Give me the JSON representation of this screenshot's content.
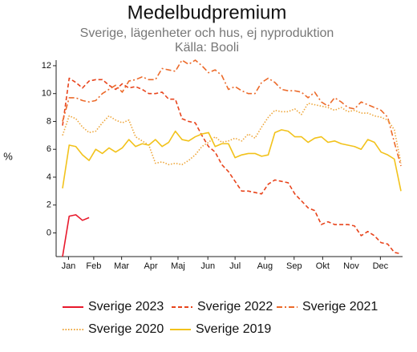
{
  "chart_data": {
    "type": "line",
    "title": "Medelbudpremium",
    "subtitle": "Sverige, lägenheter och hus, ej nyproduktion",
    "source": "Källa: Booli",
    "ylabel": "%",
    "x": [
      1,
      2,
      3,
      4,
      5,
      6,
      7,
      8,
      9,
      10,
      11,
      12,
      13,
      14,
      15,
      16,
      17,
      18,
      19,
      20,
      21,
      22,
      23,
      24,
      25,
      26,
      27,
      28,
      29,
      30,
      31,
      32,
      33,
      34,
      35,
      36,
      37,
      38,
      39,
      40,
      41,
      42,
      43,
      44,
      45,
      46,
      47,
      48,
      49,
      50,
      51,
      52
    ],
    "xlim": [
      1,
      52
    ],
    "xticks": [
      {
        "value": 1.9,
        "label": "Jan"
      },
      {
        "value": 5.7,
        "label": "Feb"
      },
      {
        "value": 9.9,
        "label": "Mar"
      },
      {
        "value": 14.3,
        "label": "Apr"
      },
      {
        "value": 18.4,
        "label": "Maj"
      },
      {
        "value": 22.9,
        "label": "Jun"
      },
      {
        "value": 27,
        "label": "Jul"
      },
      {
        "value": 31.5,
        "label": "Aug"
      },
      {
        "value": 35.9,
        "label": "Sep"
      },
      {
        "value": 40.2,
        "label": "Okt"
      },
      {
        "value": 44.5,
        "label": "Nov"
      },
      {
        "value": 48.9,
        "label": "Dec"
      }
    ],
    "ylim": [
      -1.7,
      12.4
    ],
    "yticks": [
      0,
      2,
      4,
      6,
      8,
      10,
      12
    ],
    "grid": false,
    "legend": "bottom",
    "series": [
      {
        "name": "Sverige 2023",
        "color": "#e8192c",
        "style": "solid",
        "values": [
          -1.7,
          1.2,
          1.3,
          0.9,
          1.1,
          null,
          null,
          null,
          null,
          null,
          null,
          null,
          null,
          null,
          null,
          null,
          null,
          null,
          null,
          null,
          null,
          null,
          null,
          null,
          null,
          null,
          null,
          null,
          null,
          null,
          null,
          null,
          null,
          null,
          null,
          null,
          null,
          null,
          null,
          null,
          null,
          null,
          null,
          null,
          null,
          null,
          null,
          null,
          null,
          null,
          null,
          null
        ]
      },
      {
        "name": "Sverige 2022",
        "color": "#e8441c",
        "style": "dashed",
        "values": [
          7.7,
          11.1,
          10.8,
          10.4,
          10.9,
          11.0,
          11.0,
          10.6,
          10.3,
          10.7,
          10.4,
          10.5,
          10.3,
          10.0,
          10.0,
          10.1,
          9.6,
          9.6,
          8.2,
          8.0,
          7.9,
          7.0,
          6.2,
          5.8,
          4.9,
          4.4,
          3.7,
          3.0,
          3.0,
          2.9,
          2.8,
          3.5,
          3.8,
          3.7,
          3.6,
          2.8,
          2.3,
          1.8,
          1.6,
          0.6,
          0.8,
          0.6,
          0.6,
          0.6,
          0.5,
          -0.2,
          0.1,
          -0.2,
          -0.7,
          -0.8,
          -1.4,
          -1.5
        ]
      },
      {
        "name": "Sverige 2021",
        "color": "#ec6a2a",
        "style": "dashdot",
        "values": [
          8.0,
          9.7,
          9.7,
          9.5,
          9.4,
          9.5,
          10.0,
          10.3,
          10.6,
          10.1,
          10.9,
          11.0,
          11.2,
          11.0,
          11.0,
          11.8,
          11.7,
          11.6,
          12.4,
          12.1,
          12.4,
          12.0,
          11.5,
          11.7,
          11.3,
          10.3,
          10.5,
          10.2,
          10.0,
          10.0,
          10.8,
          11.1,
          10.8,
          10.3,
          10.2,
          10.2,
          10.1,
          9.7,
          10.1,
          9.4,
          9.1,
          9.7,
          9.4,
          9.0,
          8.9,
          9.4,
          9.2,
          9.0,
          8.8,
          8.3,
          6.5,
          4.8
        ]
      },
      {
        "name": "Sverige 2020",
        "color": "#eea63a",
        "style": "dotted",
        "values": [
          7.0,
          8.4,
          8.2,
          7.6,
          7.2,
          7.3,
          7.9,
          8.4,
          8.1,
          7.9,
          8.1,
          6.9,
          6.6,
          6.3,
          5.0,
          5.1,
          4.9,
          5.0,
          4.9,
          5.2,
          5.6,
          6.2,
          6.5,
          6.9,
          6.5,
          6.6,
          6.8,
          6.6,
          7.1,
          6.8,
          7.6,
          8.3,
          8.8,
          8.7,
          8.7,
          8.9,
          8.5,
          9.3,
          9.2,
          9.1,
          9.0,
          8.8,
          9.0,
          8.7,
          8.8,
          8.6,
          8.6,
          8.4,
          8.3,
          8.1,
          7.4,
          5.0
        ]
      },
      {
        "name": "Sverige 2019",
        "color": "#f2c21b",
        "style": "solid",
        "values": [
          3.2,
          6.3,
          6.2,
          5.6,
          5.2,
          6.0,
          5.7,
          6.1,
          5.8,
          6.1,
          6.7,
          6.2,
          6.4,
          6.3,
          6.7,
          6.2,
          6.5,
          7.3,
          6.7,
          6.6,
          6.9,
          7.1,
          7.2,
          6.2,
          6.4,
          6.4,
          5.4,
          5.6,
          5.7,
          5.7,
          5.5,
          5.6,
          7.2,
          7.4,
          7.3,
          6.9,
          6.9,
          6.5,
          6.8,
          6.9,
          6.5,
          6.6,
          6.4,
          6.3,
          6.2,
          6.0,
          6.7,
          6.5,
          5.8,
          5.6,
          5.3,
          3.0
        ]
      }
    ]
  }
}
